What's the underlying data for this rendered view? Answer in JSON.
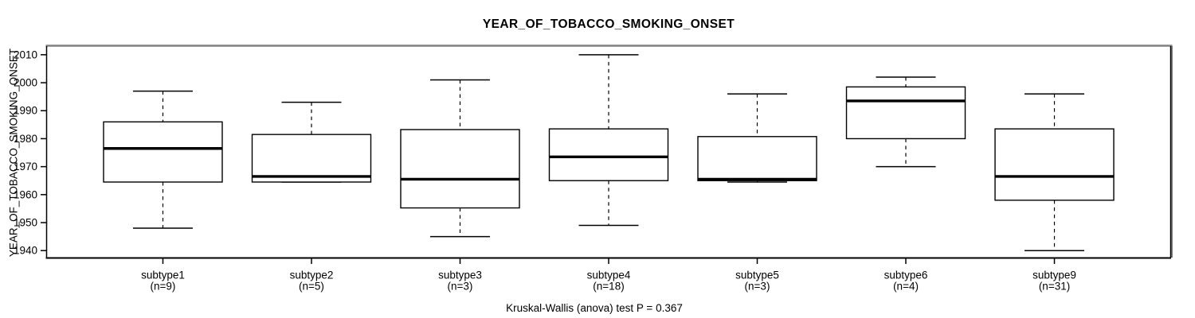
{
  "chart_data": {
    "type": "boxplot",
    "title": "YEAR_OF_TOBACCO_SMOKING_ONSET",
    "ylabel": "YEAR_OF_TOBACCO_SMOKING_ONSET",
    "annotation": "Kruskal-Wallis (anova) test P = 0.367",
    "y_ticks": [
      1940,
      1950,
      1960,
      1970,
      1980,
      1990,
      2000,
      2010
    ],
    "ylim": [
      1937.5,
      2012.8
    ],
    "grid": false,
    "legend": "none",
    "categories": [
      {
        "label": "subtype1",
        "n_label": "(n=9)",
        "stats": {
          "low": 1948,
          "q1": 1964.5,
          "median": 1976.5,
          "q3": 1986,
          "high": 1997
        }
      },
      {
        "label": "subtype2",
        "n_label": "(n=5)",
        "stats": {
          "low": 1964.5,
          "q1": 1964.5,
          "median": 1966.5,
          "q3": 1981.5,
          "high": 1993
        }
      },
      {
        "label": "subtype3",
        "n_label": "(n=3)",
        "stats": {
          "low": 1945,
          "q1": 1955.25,
          "median": 1965.5,
          "q3": 1983.25,
          "high": 2001
        }
      },
      {
        "label": "subtype4",
        "n_label": "(n=18)",
        "stats": {
          "low": 1949,
          "q1": 1965,
          "median": 1973.5,
          "q3": 1983.5,
          "high": 2010
        }
      },
      {
        "label": "subtype5",
        "n_label": "(n=3)",
        "stats": {
          "low": 1964.5,
          "q1": 1965,
          "median": 1965.5,
          "q3": 1980.75,
          "high": 1996
        }
      },
      {
        "label": "subtype6",
        "n_label": "(n=4)",
        "stats": {
          "low": 1970,
          "q1": 1980,
          "median": 1993.5,
          "q3": 1998.5,
          "high": 2002
        }
      },
      {
        "label": "subtype9",
        "n_label": "(n=31)",
        "stats": {
          "low": 1940,
          "q1": 1958,
          "median": 1966.5,
          "q3": 1983.5,
          "high": 1996
        }
      }
    ]
  },
  "colors": {
    "stroke": "#000000",
    "box_fill": "#ffffff",
    "frame_shadow": "#808080",
    "background": "#ffffff"
  }
}
